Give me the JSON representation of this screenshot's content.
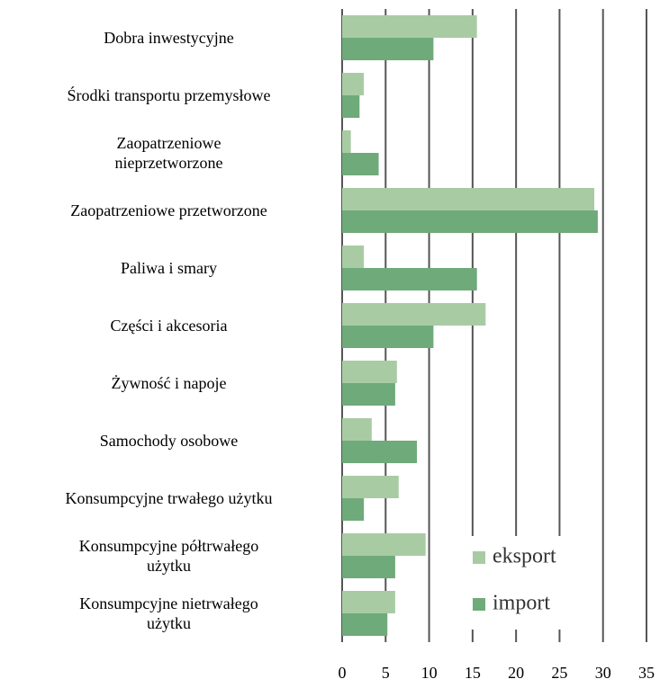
{
  "chart_data": {
    "type": "barh",
    "categories": [
      "Dobra inwestycyjne",
      "Środki transportu przemysłowe",
      "Zaopatrzeniowe\nnieprzetworzone",
      "Zaopatrzeniowe przetworzone",
      "Paliwa i smary",
      "Części i akcesoria",
      "Żywność i napoje",
      "Samochody osobowe",
      "Konsumpcyjne  trwałego użytku",
      "Konsumpcyjne półtrwałego\nużytku",
      "Konsumpcyjne nietrwałego\nużytku"
    ],
    "series": [
      {
        "name": "eksport",
        "color": "#a9cba4",
        "values": [
          15.5,
          2.5,
          1,
          29,
          2.5,
          16.5,
          6.3,
          3.4,
          6.5,
          9.6,
          6.1
        ]
      },
      {
        "name": "import",
        "color": "#6faa7a",
        "values": [
          10.5,
          2,
          4.2,
          29.4,
          15.5,
          10.5,
          6.1,
          8.6,
          2.5,
          6.1,
          5.2
        ]
      }
    ],
    "xlim": [
      0,
      35
    ],
    "xticks": [
      0,
      5,
      10,
      15,
      20,
      25,
      30,
      35
    ],
    "grid": true,
    "legend": "lower right"
  }
}
